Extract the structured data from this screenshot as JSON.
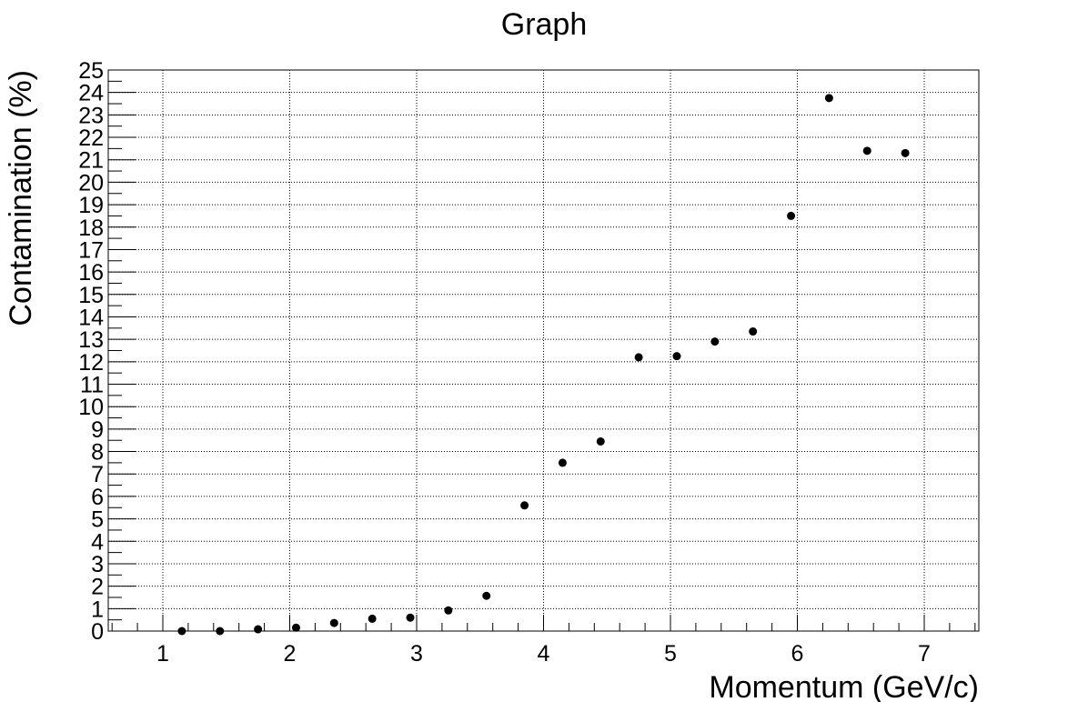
{
  "chart_data": {
    "type": "scatter",
    "title": "Graph",
    "xlabel": "Momentum (GeV/c)",
    "ylabel": "Contamination (%)",
    "xlim": [
      0.57,
      7.43
    ],
    "ylim": [
      0,
      25
    ],
    "xticks": [
      1,
      2,
      3,
      4,
      5,
      6,
      7
    ],
    "yticks": [
      0,
      1,
      2,
      3,
      4,
      5,
      6,
      7,
      8,
      9,
      10,
      11,
      12,
      13,
      14,
      15,
      16,
      17,
      18,
      19,
      20,
      21,
      22,
      23,
      24,
      25
    ],
    "grid": true,
    "marker_color": "#000000",
    "points": [
      {
        "x": 1.15,
        "y": 0.0
      },
      {
        "x": 1.45,
        "y": 0.0
      },
      {
        "x": 1.75,
        "y": 0.08
      },
      {
        "x": 2.05,
        "y": 0.15
      },
      {
        "x": 2.35,
        "y": 0.36
      },
      {
        "x": 2.65,
        "y": 0.55
      },
      {
        "x": 2.95,
        "y": 0.6
      },
      {
        "x": 3.25,
        "y": 0.92
      },
      {
        "x": 3.55,
        "y": 1.57
      },
      {
        "x": 3.85,
        "y": 5.6
      },
      {
        "x": 4.15,
        "y": 7.5
      },
      {
        "x": 4.45,
        "y": 8.45
      },
      {
        "x": 4.75,
        "y": 12.2
      },
      {
        "x": 5.05,
        "y": 12.25
      },
      {
        "x": 5.35,
        "y": 12.9
      },
      {
        "x": 5.65,
        "y": 13.35
      },
      {
        "x": 5.95,
        "y": 18.5
      },
      {
        "x": 6.25,
        "y": 23.75
      },
      {
        "x": 6.55,
        "y": 21.4
      },
      {
        "x": 6.85,
        "y": 21.3
      }
    ]
  }
}
